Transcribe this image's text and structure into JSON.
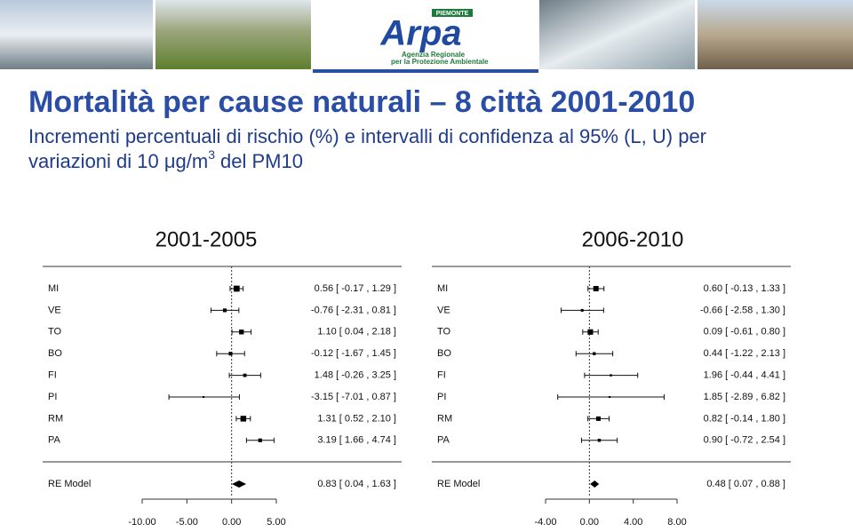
{
  "header": {
    "logo": {
      "region": "PIEMONTE",
      "name": "Arpa",
      "line1": "Agenzia Regionale",
      "line2": "per la Protezione Ambientale"
    }
  },
  "title": "Mortalità per cause naturali – 8 città 2001-2010",
  "subtitle": [
    "Incrementi percentuali di rischio (%) e intervalli di confidenza al 95% (L, U) per",
    "variazioni di 10 μg/m",
    "3",
    "del PM10"
  ],
  "chart_data": [
    {
      "type": "forest",
      "title": "2001-2005",
      "categories": [
        "MI",
        "VE",
        "TO",
        "BO",
        "FI",
        "PI",
        "RM",
        "PA"
      ],
      "values": [
        0.56,
        -0.76,
        1.1,
        -0.12,
        1.48,
        -3.15,
        1.31,
        3.19
      ],
      "lower": [
        -0.17,
        -2.31,
        0.04,
        -1.67,
        -0.26,
        -7.01,
        0.52,
        1.66
      ],
      "upper": [
        1.29,
        0.81,
        2.18,
        1.45,
        3.25,
        0.87,
        2.1,
        4.74
      ],
      "labels": [
        "0.56 [ -0.17 , 1.29 ]",
        "-0.76 [ -2.31 , 0.81 ]",
        "1.10 [ 0.04 , 2.18 ]",
        "-0.12 [ -1.67 , 1.45 ]",
        "1.48 [ -0.26 , 3.25 ]",
        "-3.15 [ -7.01 , 0.87 ]",
        "1.31 [ 0.52 , 2.10 ]",
        "3.19 [ 1.66 , 4.74 ]"
      ],
      "summary": {
        "name": "RE Model",
        "value": 0.83,
        "lower": 0.04,
        "upper": 1.63,
        "label": "0.83 [ 0.04 , 1.63 ]"
      },
      "xlim": [
        -10,
        5
      ],
      "xticks": [
        {
          "value": -10,
          "label": "-10.00"
        },
        {
          "value": -5,
          "label": "-5.00"
        },
        {
          "value": 0,
          "label": "0.00"
        },
        {
          "value": 5,
          "label": "5.00"
        }
      ]
    },
    {
      "type": "forest",
      "title": "2006-2010",
      "categories": [
        "MI",
        "VE",
        "TO",
        "BO",
        "FI",
        "PI",
        "RM",
        "PA"
      ],
      "values": [
        0.6,
        -0.66,
        0.09,
        0.44,
        1.96,
        1.85,
        0.82,
        0.9
      ],
      "lower": [
        -0.13,
        -2.58,
        -0.61,
        -1.22,
        -0.44,
        -2.89,
        -0.14,
        -0.72
      ],
      "upper": [
        1.33,
        1.3,
        0.8,
        2.13,
        4.41,
        6.82,
        1.8,
        2.54
      ],
      "labels": [
        "0.60 [ -0.13 , 1.33 ]",
        "-0.66 [ -2.58 , 1.30 ]",
        "0.09 [ -0.61 , 0.80 ]",
        "0.44 [ -1.22 , 2.13 ]",
        "1.96 [ -0.44 , 4.41 ]",
        "1.85 [ -2.89 , 6.82 ]",
        "0.82 [ -0.14 , 1.80 ]",
        "0.90 [ -0.72 , 2.54 ]"
      ],
      "summary": {
        "name": "RE Model",
        "value": 0.48,
        "lower": 0.07,
        "upper": 0.88,
        "label": "0.48 [ 0.07 , 0.88 ]"
      },
      "xlim": [
        -4,
        8
      ],
      "xticks": [
        {
          "value": -4,
          "label": "-4.00"
        },
        {
          "value": 0,
          "label": "0.00"
        },
        {
          "value": 4,
          "label": "4.00"
        },
        {
          "value": 8,
          "label": "8.00"
        }
      ]
    }
  ]
}
